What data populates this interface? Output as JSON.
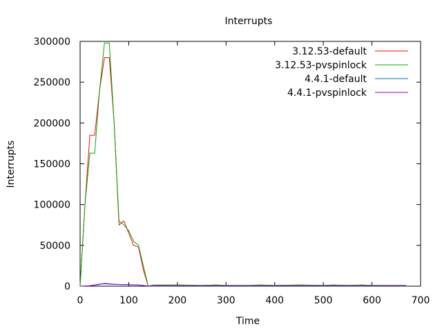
{
  "chart_data": {
    "type": "line",
    "title": "Interrupts",
    "xlabel": "Time",
    "ylabel": "Interrupts",
    "xlim": [
      0,
      700
    ],
    "ylim": [
      0,
      300000
    ],
    "xticks": [
      "0",
      "100",
      "200",
      "300",
      "400",
      "500",
      "600",
      "700"
    ],
    "yticks": [
      "0",
      "50000",
      "100000",
      "150000",
      "200000",
      "250000",
      "300000"
    ],
    "grid": false,
    "legend_position": "top-right",
    "series": [
      {
        "name": "3.12.53-default",
        "color": "#ff0000",
        "x": [
          0,
          10,
          20,
          30,
          40,
          50,
          60,
          70,
          80,
          90,
          100,
          110,
          120,
          130,
          140,
          150,
          160,
          200,
          250,
          280,
          300,
          350,
          370,
          400,
          450,
          500,
          520,
          550,
          580,
          600,
          650,
          670
        ],
        "y": [
          0,
          100000,
          185000,
          185000,
          240000,
          280000,
          280000,
          200000,
          75000,
          80000,
          65000,
          50000,
          48000,
          20000,
          0,
          1500,
          1000,
          1500,
          1000,
          1500,
          1000,
          1000,
          1500,
          1000,
          1500,
          1000,
          1500,
          1000,
          1500,
          1000,
          1000,
          1000
        ]
      },
      {
        "name": "3.12.53-pvspinlock",
        "color": "#00aa00",
        "x": [
          0,
          10,
          20,
          30,
          40,
          50,
          60,
          70,
          80,
          90,
          100,
          110,
          120,
          130,
          140,
          150,
          160,
          200,
          250,
          280,
          300,
          350,
          370,
          400,
          450,
          500,
          520,
          550,
          580,
          600,
          650,
          670
        ],
        "y": [
          0,
          100000,
          163000,
          163000,
          240000,
          298000,
          298000,
          200000,
          80000,
          75000,
          68000,
          55000,
          50000,
          25000,
          0,
          1500,
          1500,
          1500,
          1000,
          1500,
          1000,
          1000,
          1500,
          1000,
          1500,
          1000,
          1500,
          1000,
          1500,
          1000,
          1000,
          1000
        ]
      },
      {
        "name": "4.4.1-default",
        "color": "#0066cc",
        "x": [
          0,
          20,
          40,
          50,
          60,
          80,
          100,
          120,
          140,
          200,
          300,
          400,
          500,
          600,
          670
        ],
        "y": [
          0,
          500,
          2000,
          3500,
          3000,
          2000,
          2000,
          1500,
          200,
          300,
          300,
          300,
          300,
          300,
          300
        ]
      },
      {
        "name": "4.4.1-pvspinlock",
        "color": "#9400d3",
        "x": [
          0,
          20,
          40,
          50,
          60,
          80,
          100,
          120,
          140,
          200,
          300,
          400,
          500,
          600,
          670
        ],
        "y": [
          0,
          500,
          2500,
          3000,
          2500,
          2000,
          1800,
          1500,
          200,
          300,
          300,
          300,
          300,
          300,
          300
        ]
      }
    ]
  }
}
